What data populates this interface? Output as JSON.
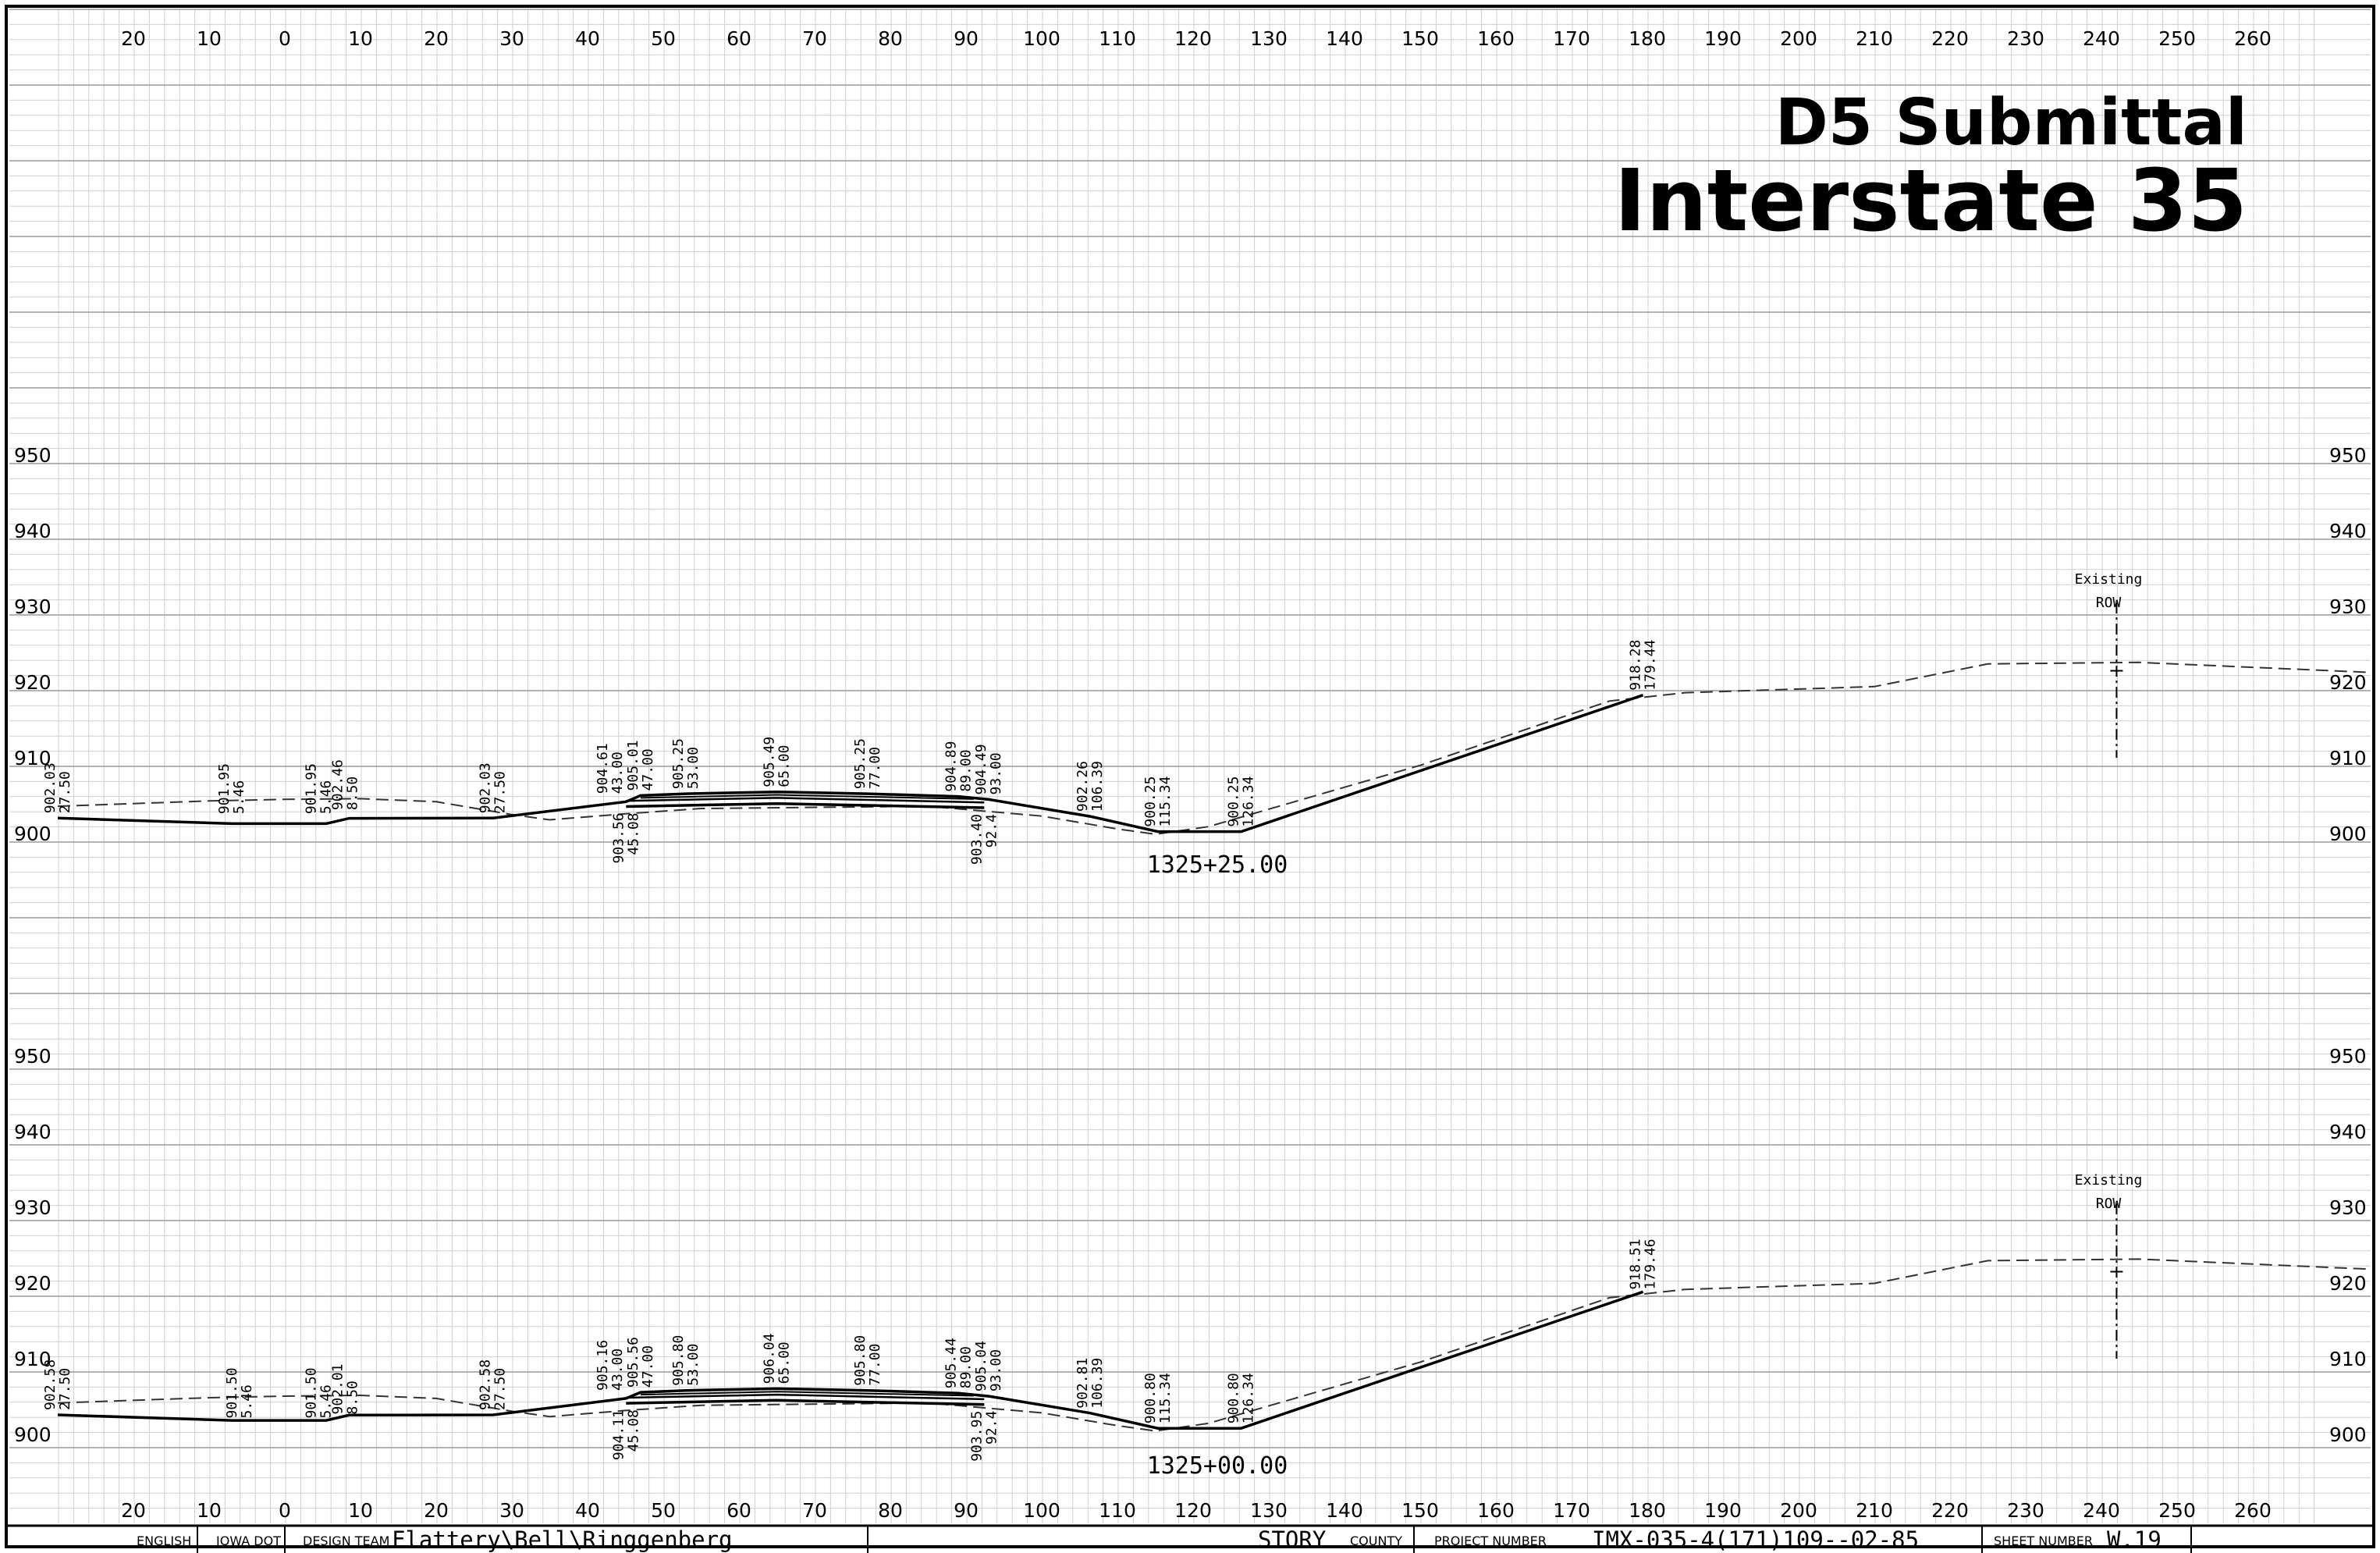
{
  "title": {
    "line1": "D5 Submittal",
    "line2": "Interstate 35"
  },
  "axis": {
    "offset_labels": [
      "20",
      "10",
      "0",
      "10",
      "20",
      "30",
      "40",
      "50",
      "60",
      "70",
      "80",
      "90",
      "100",
      "110",
      "120",
      "130",
      "140",
      "150",
      "160",
      "170",
      "180",
      "190",
      "200",
      "210",
      "220",
      "230",
      "240",
      "250",
      "260"
    ],
    "elevation_labels": [
      "950",
      "940",
      "930",
      "920",
      "910",
      "900"
    ]
  },
  "sections": [
    {
      "station": "1325+25.00",
      "row_label": [
        "Existing",
        "ROW"
      ],
      "annotations": [
        {
          "off": -30,
          "elev": 902.03,
          "lines": [
            "902.03",
            "27.50"
          ],
          "dir": "up"
        },
        {
          "off": -7,
          "elev": 901.95,
          "lines": [
            "901.95",
            "5.46"
          ],
          "dir": "up"
        },
        {
          "off": 4.5,
          "elev": 901.95,
          "lines": [
            "901.95",
            "5.46"
          ],
          "dir": "up"
        },
        {
          "off": 8,
          "elev": 902.46,
          "lines": [
            "902.46",
            "8.50"
          ],
          "dir": "up"
        },
        {
          "off": 27.5,
          "elev": 902.03,
          "lines": [
            "902.03",
            "27.50"
          ],
          "dir": "up"
        },
        {
          "off": 43,
          "elev": 904.61,
          "lines": [
            "904.61",
            "43.00"
          ],
          "dir": "up"
        },
        {
          "off": 47,
          "elev": 905.01,
          "lines": [
            "905.01",
            "47.00"
          ],
          "dir": "up"
        },
        {
          "off": 53,
          "elev": 905.25,
          "lines": [
            "905.25",
            "53.00"
          ],
          "dir": "up"
        },
        {
          "off": 65,
          "elev": 905.49,
          "lines": [
            "905.49",
            "65.00"
          ],
          "dir": "up"
        },
        {
          "off": 77,
          "elev": 905.25,
          "lines": [
            "905.25",
            "77.00"
          ],
          "dir": "up"
        },
        {
          "off": 89,
          "elev": 904.89,
          "lines": [
            "904.89",
            "89.00"
          ],
          "dir": "up"
        },
        {
          "off": 93,
          "elev": 904.49,
          "lines": [
            "904.49",
            "93.00"
          ],
          "dir": "up"
        },
        {
          "off": 106.39,
          "elev": 902.26,
          "lines": [
            "902.26",
            "106.39"
          ],
          "dir": "up"
        },
        {
          "off": 115.34,
          "elev": 900.25,
          "lines": [
            "900.25",
            "115.34"
          ],
          "dir": "up"
        },
        {
          "off": 126.34,
          "elev": 900.25,
          "lines": [
            "900.25",
            "126.34"
          ],
          "dir": "up"
        },
        {
          "off": 179.44,
          "elev": 918.28,
          "lines": [
            "918.28",
            "179.44"
          ],
          "dir": "up"
        },
        {
          "off": 45.08,
          "elev": 903.56,
          "lines": [
            "903.56",
            "45.08"
          ],
          "dir": "down"
        },
        {
          "off": 92.4,
          "elev": 903.4,
          "lines": [
            "903.40",
            "92.4"
          ],
          "dir": "down"
        }
      ]
    },
    {
      "station": "1325+00.00",
      "row_label": [
        "Existing",
        "ROW"
      ],
      "annotations": [
        {
          "off": -30,
          "elev": 902.58,
          "lines": [
            "902.58",
            "27.50"
          ],
          "dir": "up"
        },
        {
          "off": -6,
          "elev": 901.5,
          "lines": [
            "901.50",
            "5.46"
          ],
          "dir": "up"
        },
        {
          "off": 4.5,
          "elev": 901.5,
          "lines": [
            "901.50",
            "5.46"
          ],
          "dir": "up"
        },
        {
          "off": 8,
          "elev": 902.01,
          "lines": [
            "902.01",
            "8.50"
          ],
          "dir": "up"
        },
        {
          "off": 27.5,
          "elev": 902.58,
          "lines": [
            "902.58",
            "27.50"
          ],
          "dir": "up"
        },
        {
          "off": 43,
          "elev": 905.16,
          "lines": [
            "905.16",
            "43.00"
          ],
          "dir": "up"
        },
        {
          "off": 47,
          "elev": 905.56,
          "lines": [
            "905.56",
            "47.00"
          ],
          "dir": "up"
        },
        {
          "off": 53,
          "elev": 905.8,
          "lines": [
            "905.80",
            "53.00"
          ],
          "dir": "up"
        },
        {
          "off": 65,
          "elev": 906.04,
          "lines": [
            "906.04",
            "65.00"
          ],
          "dir": "up"
        },
        {
          "off": 77,
          "elev": 905.8,
          "lines": [
            "905.80",
            "77.00"
          ],
          "dir": "up"
        },
        {
          "off": 89,
          "elev": 905.44,
          "lines": [
            "905.44",
            "89.00"
          ],
          "dir": "up"
        },
        {
          "off": 93,
          "elev": 905.04,
          "lines": [
            "905.04",
            "93.00"
          ],
          "dir": "up"
        },
        {
          "off": 106.39,
          "elev": 902.81,
          "lines": [
            "902.81",
            "106.39"
          ],
          "dir": "up"
        },
        {
          "off": 115.34,
          "elev": 900.8,
          "lines": [
            "900.80",
            "115.34"
          ],
          "dir": "up"
        },
        {
          "off": 126.34,
          "elev": 900.8,
          "lines": [
            "900.80",
            "126.34"
          ],
          "dir": "up"
        },
        {
          "off": 179.46,
          "elev": 918.51,
          "lines": [
            "918.51",
            "179.46"
          ],
          "dir": "up"
        },
        {
          "off": 45.08,
          "elev": 904.11,
          "lines": [
            "904.11",
            "45.08"
          ],
          "dir": "down"
        },
        {
          "off": 92.4,
          "elev": 903.95,
          "lines": [
            "903.95",
            "92.4"
          ],
          "dir": "down"
        }
      ]
    }
  ],
  "title_block": {
    "units": "ENGLISH",
    "agency": "IOWA DOT",
    "design_team_label": "DESIGN TEAM",
    "design_team": "Flattery\\Bell\\Ringgenberg",
    "county": "STORY",
    "county_label": "COUNTY",
    "project_label": "PROJECT NUMBER",
    "project_number": "IMX-035-4(171)109--02-85",
    "sheet_label": "SHEET NUMBER",
    "sheet_number": "W.19"
  }
}
